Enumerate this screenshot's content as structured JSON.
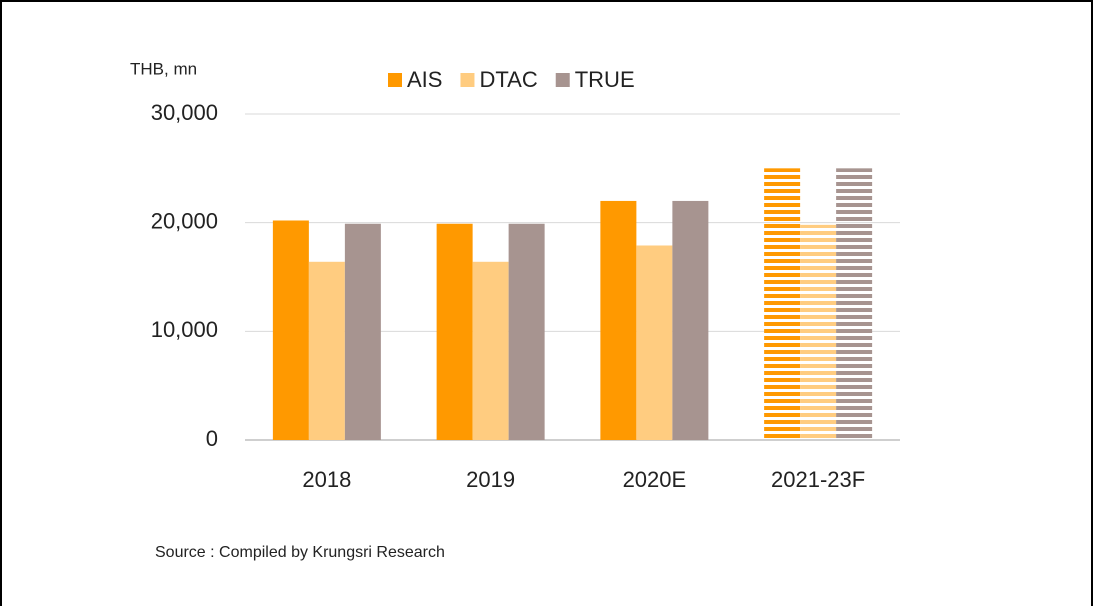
{
  "chart_data": {
    "type": "bar",
    "y_label": "THB, mn",
    "categories": [
      "2018",
      "2019",
      "2020E",
      "2021-23F"
    ],
    "hatched": [
      false,
      false,
      false,
      true
    ],
    "series": [
      {
        "name": "AIS",
        "color": "#ff9900",
        "values": [
          20200,
          19900,
          22000,
          25000
        ]
      },
      {
        "name": "DTAC",
        "color": "#ffcc80",
        "values": [
          16400,
          16400,
          17900,
          19800
        ]
      },
      {
        "name": "TRUE",
        "color": "#a79490",
        "values": [
          19900,
          19900,
          22000,
          25000
        ]
      }
    ],
    "ylim": [
      0,
      30000
    ],
    "yticks": [
      0,
      {
        "value": 10000,
        "label": "10,000"
      },
      {
        "value": 20000,
        "label": "20,000"
      },
      {
        "value": 30000,
        "label": "30,000"
      }
    ],
    "grid": true,
    "legend": "top",
    "source": "Source :  Compiled by Krungsri Research"
  }
}
